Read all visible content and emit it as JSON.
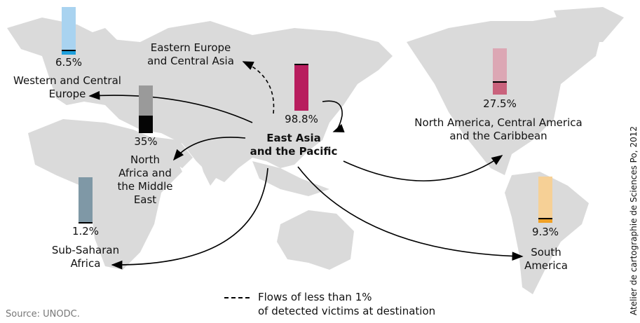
{
  "origin": {
    "label_line1": "East Asia",
    "label_line2": "and the Pacific"
  },
  "regions": [
    {
      "id": "western-central-europe",
      "label_line1": "Western and Central",
      "label_line2": "Europe",
      "percent": "6.5%",
      "value": 6.5,
      "color_light": "#a9d3f0",
      "color_dark": "#1ea0dc"
    },
    {
      "id": "eastern-europe-central-asia",
      "label_line1": "Eastern Europe",
      "label_line2": "and Central Asia",
      "flow": "dashed"
    },
    {
      "id": "east-asia-pacific",
      "percent": "98.8%",
      "value": 98.8,
      "color_light": "#b81d5e",
      "color_dark": "#b81d5e"
    },
    {
      "id": "north-africa-middle-east",
      "label_line1": "North",
      "label_line2": "Africa and",
      "label_line3": "the Middle",
      "label_line4": "East",
      "percent": "35%",
      "value": 35,
      "color_light": "#9a9a9a",
      "color_dark": "#050505"
    },
    {
      "id": "sub-saharan-africa",
      "label_line1": "Sub-Saharan",
      "label_line2": "Africa",
      "percent": "1.2%",
      "value": 1.2,
      "color_light": "#7f98a6",
      "color_dark": "#4e6a78"
    },
    {
      "id": "north-central-america-caribbean",
      "label_line1": "North America, Central America",
      "label_line2": "and the Caribbean",
      "percent": "27.5%",
      "value": 27.5,
      "color_light": "#dca7b4",
      "color_dark": "#c9627c"
    },
    {
      "id": "south-america",
      "label_line1": "South",
      "label_line2": "America",
      "percent": "9.3%",
      "value": 9.3,
      "color_light": "#f6d096",
      "color_dark": "#f0a126"
    }
  ],
  "legend": {
    "line1": "Flows of less than 1%",
    "line2": "of detected victims at destination"
  },
  "source": "Source: UNODC.",
  "credit": "Atelier de cartographie de Sciences Po, 2012",
  "map_land_color": "#d9d9d9"
}
